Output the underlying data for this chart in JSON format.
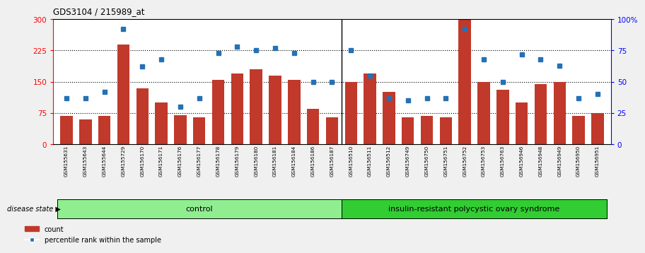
{
  "title": "GDS3104 / 215989_at",
  "samples": [
    "GSM155631",
    "GSM155643",
    "GSM155644",
    "GSM155729",
    "GSM156170",
    "GSM156171",
    "GSM156176",
    "GSM156177",
    "GSM156178",
    "GSM156179",
    "GSM156180",
    "GSM156181",
    "GSM156184",
    "GSM156186",
    "GSM156187",
    "GSM156510",
    "GSM156511",
    "GSM156512",
    "GSM156749",
    "GSM156750",
    "GSM156751",
    "GSM156752",
    "GSM156753",
    "GSM156763",
    "GSM156946",
    "GSM156948",
    "GSM156949",
    "GSM156950",
    "GSM156951"
  ],
  "counts": [
    68,
    60,
    68,
    240,
    135,
    100,
    70,
    65,
    155,
    170,
    180,
    165,
    155,
    85,
    65,
    150,
    170,
    125,
    65,
    68,
    65,
    300,
    150,
    130,
    100,
    145,
    150,
    68,
    75
  ],
  "percentile_ranks": [
    37,
    37,
    42,
    92,
    62,
    68,
    30,
    37,
    73,
    78,
    75,
    77,
    73,
    50,
    50,
    75,
    55,
    37,
    35,
    37,
    37,
    92,
    68,
    50,
    72,
    68,
    63,
    37,
    40
  ],
  "group_control_count": 15,
  "group_control_label": "control",
  "group_disease_label": "insulin-resistant polycystic ovary syndrome",
  "disease_state_label": "disease state",
  "bar_color": "#c0392b",
  "dot_color": "#2471b5",
  "ylim_left": [
    0,
    300
  ],
  "ylim_right": [
    0,
    100
  ],
  "yticks_left": [
    0,
    75,
    150,
    225,
    300
  ],
  "yticks_left_labels": [
    "0",
    "75",
    "150",
    "225",
    "300"
  ],
  "yticks_right": [
    0,
    25,
    50,
    75,
    100
  ],
  "yticks_right_labels": [
    "0",
    "25",
    "50",
    "75",
    "100%"
  ],
  "hlines": [
    75,
    150,
    225
  ],
  "legend_count_label": "count",
  "legend_pct_label": "percentile rank within the sample",
  "bg_color": "#f0f0f0",
  "plot_bg_color": "#ffffff",
  "control_bg": "#90EE90",
  "disease_bg": "#32cd32"
}
